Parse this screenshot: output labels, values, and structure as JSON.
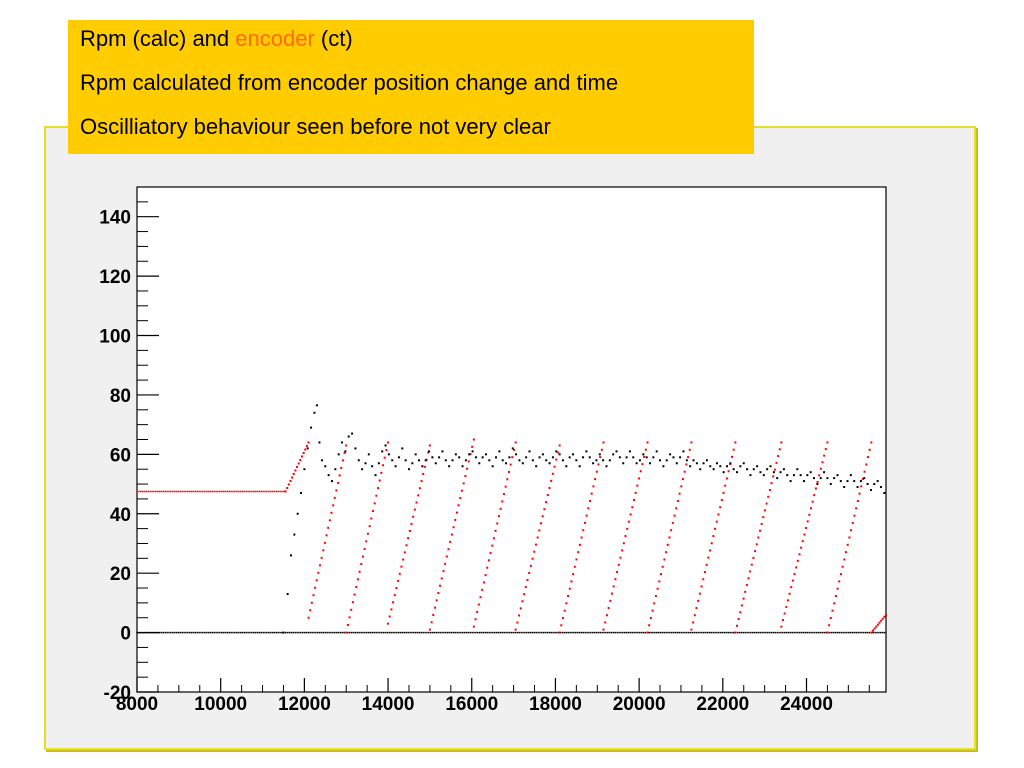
{
  "header": {
    "line1_prefix": "Rpm (calc) and ",
    "line1_accent": "encoder",
    "line1_suffix": " (ct)",
    "line2": "Rpm calculated from encoder position change and time",
    "line3": "Oscilliatory behaviour seen before not very clear"
  },
  "colors": {
    "header_bg": "#ffcc00",
    "accent": "#ff6a1a",
    "frame_border": "#e8de2a",
    "plot_bg": "#f0f0f0",
    "series_calc": "#000000",
    "series_encoder": "#ff0000"
  },
  "chart_data": {
    "type": "scatter",
    "title": "",
    "xlabel": "",
    "ylabel": "",
    "xlim": [
      8000,
      25900
    ],
    "ylim": [
      -20,
      150
    ],
    "x_ticks": [
      8000,
      10000,
      12000,
      14000,
      16000,
      18000,
      20000,
      22000,
      24000
    ],
    "y_ticks": [
      -20,
      0,
      20,
      40,
      60,
      80,
      100,
      120,
      140
    ],
    "grid": false,
    "series": [
      {
        "color": "#000000",
        "description_points": [
          [
            11500,
            0
          ],
          [
            11600,
            13
          ],
          [
            11680,
            26
          ],
          [
            11760,
            33
          ],
          [
            11840,
            40
          ],
          [
            11920,
            47
          ],
          [
            12000,
            55
          ],
          [
            12080,
            62
          ],
          [
            12160,
            69
          ],
          [
            12240,
            74
          ],
          [
            12300,
            76.5
          ],
          [
            12360,
            64
          ],
          [
            12420,
            58
          ],
          [
            12500,
            56
          ],
          [
            12580,
            53
          ],
          [
            12660,
            51
          ],
          [
            12740,
            55
          ],
          [
            12820,
            60
          ],
          [
            12900,
            64
          ],
          [
            12980,
            61
          ],
          [
            13060,
            66
          ],
          [
            13140,
            67
          ],
          [
            13220,
            62
          ],
          [
            13300,
            58
          ],
          [
            13380,
            55
          ],
          [
            13460,
            57
          ],
          [
            13540,
            60
          ],
          [
            13620,
            56
          ],
          [
            13700,
            53
          ],
          [
            13780,
            57
          ],
          [
            13860,
            61
          ],
          [
            13940,
            63
          ],
          [
            14020,
            60
          ],
          [
            14100,
            58
          ],
          [
            14180,
            56
          ],
          [
            14260,
            59
          ],
          [
            14340,
            62
          ],
          [
            14420,
            58
          ],
          [
            14500,
            55
          ],
          [
            14580,
            57
          ],
          [
            14660,
            60
          ],
          [
            14740,
            58
          ],
          [
            14820,
            56
          ],
          [
            14900,
            58
          ],
          [
            14980,
            61
          ],
          [
            15060,
            59
          ],
          [
            15140,
            57
          ],
          [
            15220,
            59
          ],
          [
            15300,
            61
          ],
          [
            15380,
            58
          ],
          [
            15460,
            56
          ],
          [
            15540,
            58
          ],
          [
            15620,
            60
          ],
          [
            15700,
            59
          ],
          [
            15780,
            56
          ],
          [
            15860,
            58
          ],
          [
            15940,
            60
          ],
          [
            16020,
            61
          ],
          [
            16100,
            59
          ],
          [
            16180,
            57
          ],
          [
            16260,
            59
          ],
          [
            16340,
            60
          ],
          [
            16420,
            58
          ],
          [
            16500,
            56
          ],
          [
            16580,
            59
          ],
          [
            16660,
            61
          ],
          [
            16740,
            58
          ],
          [
            16820,
            57
          ],
          [
            16900,
            59
          ],
          [
            16980,
            62
          ],
          [
            17060,
            60
          ],
          [
            17140,
            58
          ],
          [
            17220,
            57
          ],
          [
            17300,
            59
          ],
          [
            17380,
            61
          ],
          [
            17460,
            58
          ],
          [
            17540,
            56
          ],
          [
            17620,
            59
          ],
          [
            17700,
            60
          ],
          [
            17780,
            58
          ],
          [
            17860,
            57
          ],
          [
            17940,
            59
          ],
          [
            18020,
            61
          ],
          [
            18100,
            60
          ],
          [
            18180,
            58
          ],
          [
            18260,
            56
          ],
          [
            18340,
            59
          ],
          [
            18420,
            60
          ],
          [
            18500,
            58
          ],
          [
            18580,
            56
          ],
          [
            18660,
            59
          ],
          [
            18740,
            61
          ],
          [
            18820,
            59
          ],
          [
            18900,
            57
          ],
          [
            18980,
            58
          ],
          [
            19060,
            60
          ],
          [
            19140,
            58
          ],
          [
            19220,
            56
          ],
          [
            19300,
            58
          ],
          [
            19380,
            60
          ],
          [
            19460,
            61
          ],
          [
            19540,
            59
          ],
          [
            19620,
            57
          ],
          [
            19700,
            59
          ],
          [
            19780,
            61
          ],
          [
            19860,
            59
          ],
          [
            19940,
            57
          ],
          [
            20020,
            58
          ],
          [
            20100,
            60
          ],
          [
            20180,
            59
          ],
          [
            20260,
            57
          ],
          [
            20340,
            59
          ],
          [
            20420,
            61
          ],
          [
            20500,
            58
          ],
          [
            20580,
            56
          ],
          [
            20660,
            58
          ],
          [
            20740,
            60
          ],
          [
            20820,
            59
          ],
          [
            20900,
            57
          ],
          [
            20980,
            59
          ],
          [
            21060,
            61
          ],
          [
            21140,
            58
          ],
          [
            21220,
            56
          ],
          [
            21300,
            58
          ],
          [
            21380,
            57
          ],
          [
            21460,
            55
          ],
          [
            21540,
            57
          ],
          [
            21620,
            58
          ],
          [
            21700,
            56
          ],
          [
            21780,
            55
          ],
          [
            21860,
            57
          ],
          [
            21940,
            56
          ],
          [
            22020,
            54
          ],
          [
            22100,
            56
          ],
          [
            22180,
            57
          ],
          [
            22260,
            55
          ],
          [
            22340,
            54
          ],
          [
            22420,
            56
          ],
          [
            22500,
            57
          ],
          [
            22580,
            55
          ],
          [
            22660,
            53
          ],
          [
            22740,
            55
          ],
          [
            22820,
            56
          ],
          [
            22900,
            54
          ],
          [
            22980,
            53
          ],
          [
            23060,
            55
          ],
          [
            23140,
            56
          ],
          [
            23220,
            54
          ],
          [
            23300,
            52
          ],
          [
            23380,
            54
          ],
          [
            23460,
            55
          ],
          [
            23540,
            53
          ],
          [
            23620,
            51
          ],
          [
            23700,
            53
          ],
          [
            23780,
            55
          ],
          [
            23860,
            53
          ],
          [
            23940,
            51
          ],
          [
            24020,
            53
          ],
          [
            24100,
            54
          ],
          [
            24180,
            52
          ],
          [
            24260,
            50
          ],
          [
            24340,
            52
          ],
          [
            24420,
            54
          ],
          [
            24500,
            52
          ],
          [
            24580,
            50
          ],
          [
            24660,
            52
          ],
          [
            24740,
            53
          ],
          [
            24820,
            51
          ],
          [
            24900,
            49
          ],
          [
            24980,
            51
          ],
          [
            25060,
            53
          ],
          [
            25140,
            51
          ],
          [
            25220,
            49
          ],
          [
            25300,
            51
          ],
          [
            25380,
            52
          ],
          [
            25460,
            50
          ],
          [
            25540,
            48
          ],
          [
            25620,
            50
          ],
          [
            25700,
            51
          ],
          [
            25780,
            49
          ],
          [
            25860,
            47
          ]
        ],
        "zero_line": {
          "from": 8000,
          "to": 25900,
          "y": 0
        }
      },
      {
        "color": "#ff0000",
        "plateau": {
          "from": 8000,
          "to": 11550,
          "y": 47.5
        },
        "ramps": [
          {
            "start": 11550,
            "end": 12100,
            "y_start": 47.5,
            "y_end": 64
          },
          {
            "start": 12100,
            "end": 13000,
            "y_start": 5,
            "y_end": 63
          },
          {
            "start": 13000,
            "end": 14000,
            "y_start": 0,
            "y_end": 64
          },
          {
            "start": 14000,
            "end": 15000,
            "y_start": 3,
            "y_end": 63
          },
          {
            "start": 15000,
            "end": 16050,
            "y_start": 1,
            "y_end": 65
          },
          {
            "start": 16050,
            "end": 17050,
            "y_start": 2,
            "y_end": 64
          },
          {
            "start": 17050,
            "end": 18100,
            "y_start": 1,
            "y_end": 63
          },
          {
            "start": 18100,
            "end": 19150,
            "y_start": 0,
            "y_end": 64
          },
          {
            "start": 19150,
            "end": 20200,
            "y_start": 1,
            "y_end": 64
          },
          {
            "start": 20200,
            "end": 21250,
            "y_start": 0,
            "y_end": 64
          },
          {
            "start": 21250,
            "end": 22300,
            "y_start": 1,
            "y_end": 64
          },
          {
            "start": 22300,
            "end": 23400,
            "y_start": 0,
            "y_end": 64
          },
          {
            "start": 23400,
            "end": 24500,
            "y_start": 2,
            "y_end": 64
          },
          {
            "start": 24500,
            "end": 25550,
            "y_start": 0,
            "y_end": 64
          },
          {
            "start": 25550,
            "end": 25900,
            "y_start": 0,
            "y_end": 6
          }
        ]
      }
    ]
  }
}
